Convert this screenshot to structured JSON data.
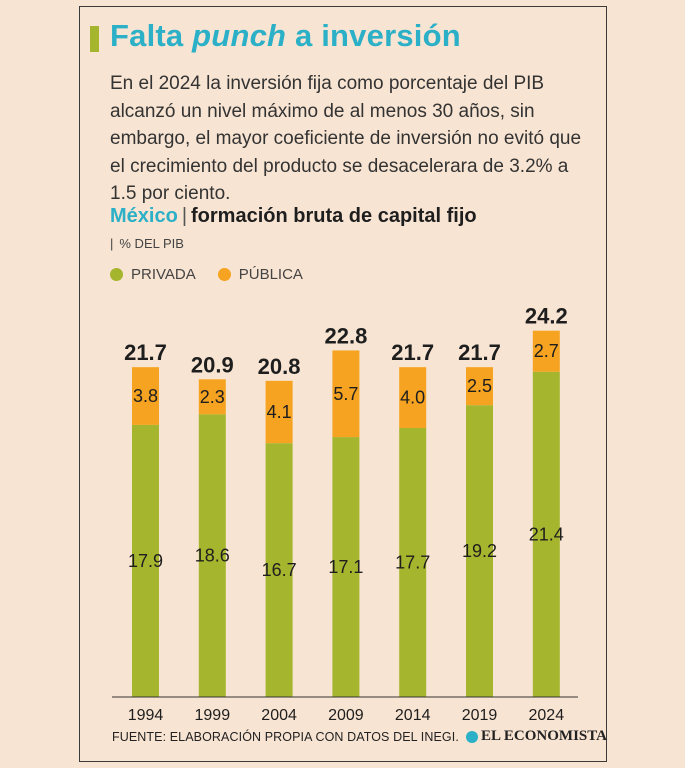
{
  "header": {
    "title_part1": "Falta ",
    "title_italic": "punch",
    "title_part2": " a inversión",
    "lead": "En el 2024 la inversión fija como porcentaje del PIB alcanzó un nivel máximo de al menos 30 años, sin embargo, el mayor coeficiente de inversión no evitó que el crecimiento del producto se desacelerara de 3.2% a 1.5 por ciento."
  },
  "chart_header": {
    "country": "México",
    "separator": "|",
    "subtitle": "formación bruta de capital fijo",
    "unit_bar": "|",
    "unit": "% DEL PIB"
  },
  "colors": {
    "privada": "#a6b52e",
    "publica": "#f5a321",
    "accent": "#2bb0c7"
  },
  "chart_data": {
    "type": "bar",
    "stacked": true,
    "categories": [
      "1994",
      "1999",
      "2004",
      "2009",
      "2014",
      "2019",
      "2024"
    ],
    "series": [
      {
        "name": "PRIVADA",
        "values": [
          17.9,
          18.6,
          16.7,
          17.1,
          17.7,
          19.2,
          21.4
        ]
      },
      {
        "name": "PÚBLICA",
        "values": [
          3.8,
          2.3,
          4.1,
          5.7,
          4.0,
          2.5,
          2.7
        ]
      }
    ],
    "totals": [
      "21.7",
      "20.9",
      "20.8",
      "22.8",
      "21.7",
      "21.7",
      "24.2"
    ],
    "privada_labels": [
      "17.9",
      "18.6",
      "16.7",
      "17.1",
      "17.7",
      "19.2",
      "21.4"
    ],
    "publica_labels": [
      "3.8",
      "2.3",
      "4.1",
      "5.7",
      "4.0",
      "2.5",
      "2.7"
    ],
    "legend_position": "top-left",
    "ylim": [
      0,
      24.2
    ],
    "grid": false
  },
  "footer": {
    "source": "FUENTE: ELABORACIÓN PROPIA CON DATOS DEL INEGI.",
    "brand": "EL ECONOMISTA"
  }
}
